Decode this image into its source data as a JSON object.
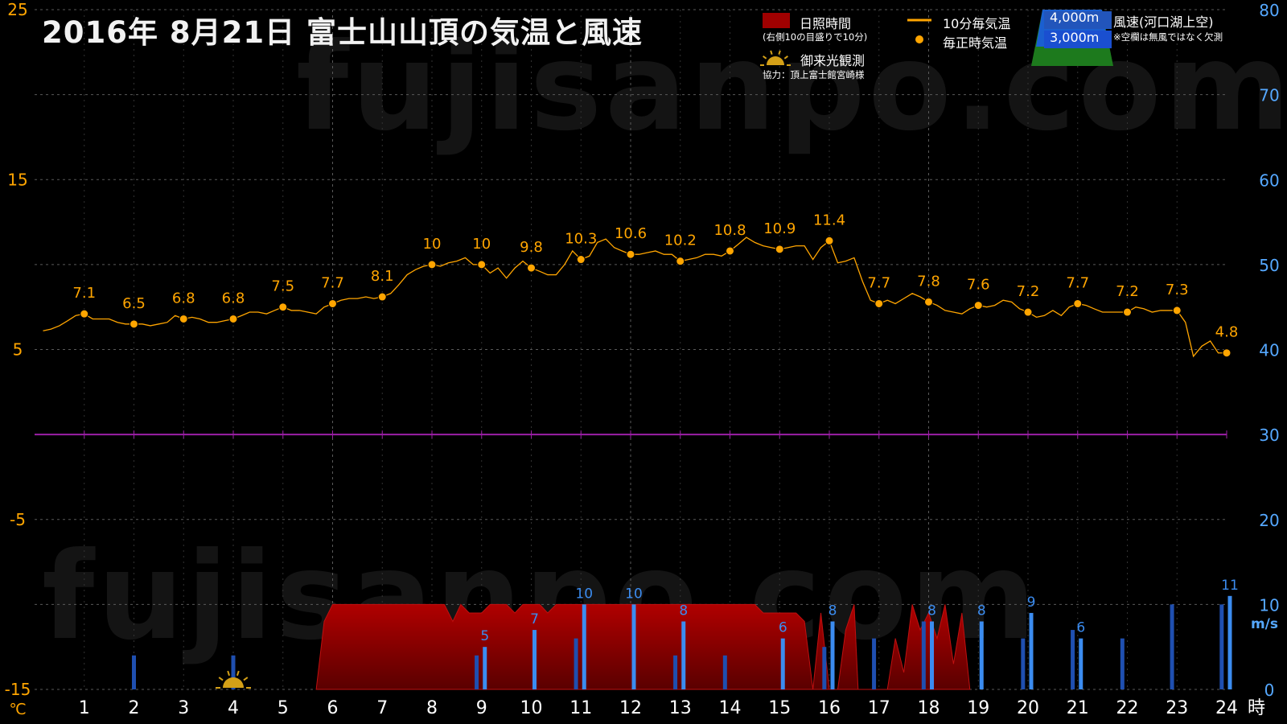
{
  "title": "2016年  8月21日   富士山山頂の気温と風速",
  "watermark": "fujisanpo.com",
  "legend": {
    "sunshine_label": "日照時間",
    "sunshine_note": "(右側10の目盛りで10分)",
    "temp10_label": "10分毎気温",
    "temp_hourly_label": "毎正時気温",
    "sunrise_label": "御来光観測",
    "sunrise_credit": "協力：頂上富士館宮崎様",
    "wind_4000_label": "4,000m",
    "wind_3000_label": "3,000m",
    "wind_title": "風速(河口湖上空)",
    "wind_note": "※空欄は無風ではなく欠測"
  },
  "colors": {
    "temp": "#ffa500",
    "wind_axis": "#55a8ff",
    "wind_4000": "#1f4fb0",
    "wind_3000": "#3b8cf0",
    "sunshine": "#a00000",
    "zero_line": "#9b1fa6",
    "grid": "#5a5a5a",
    "mountain_top": "#1a5fd0",
    "mountain_base": "#1d7a1d"
  },
  "chart_data": {
    "type": "line",
    "x_unit": "時",
    "left_axis_unit": "℃",
    "right_axis_unit": "m/s",
    "left_ticks": [
      "25",
      "15",
      "5",
      "-5",
      "-15"
    ],
    "right_ticks": [
      "80",
      "70",
      "60",
      "50",
      "40",
      "30",
      "20",
      "10",
      "0"
    ],
    "x_ticks": [
      "1",
      "2",
      "3",
      "4",
      "5",
      "6",
      "7",
      "8",
      "9",
      "10",
      "11",
      "12",
      "13",
      "14",
      "15",
      "16",
      "17",
      "18",
      "19",
      "20",
      "21",
      "22",
      "23",
      "24"
    ],
    "left_range": [
      -15,
      25
    ],
    "right_range": [
      0,
      80
    ],
    "grid": true,
    "hourly_temp": {
      "hours": [
        1,
        2,
        3,
        4,
        5,
        6,
        7,
        8,
        9,
        10,
        11,
        12,
        13,
        14,
        15,
        16,
        17,
        18,
        19,
        20,
        21,
        22,
        23,
        24
      ],
      "values": [
        7.1,
        6.5,
        6.8,
        6.8,
        7.5,
        7.7,
        8.1,
        10,
        10,
        9.8,
        10.3,
        10.6,
        10.2,
        10.8,
        10.9,
        11.4,
        7.7,
        7.8,
        7.6,
        7.2,
        7.7,
        7.2,
        7.3,
        4.8
      ],
      "labels": [
        "7.1",
        "6.5",
        "6.8",
        "6.8",
        "7.5",
        "7.7",
        "8.1",
        "10",
        "10",
        "9.8",
        "10.3",
        "10.6",
        "10.2",
        "10.8",
        "10.9",
        "11.4",
        "7.7",
        "7.8",
        "7.6",
        "7.2",
        "7.7",
        "7.2",
        "7.3",
        "4.8"
      ]
    },
    "temp_10min": [
      [
        0.17,
        6.1
      ],
      [
        0.33,
        6.2
      ],
      [
        0.5,
        6.4
      ],
      [
        0.67,
        6.7
      ],
      [
        0.83,
        7.0
      ],
      [
        1,
        7.1
      ],
      [
        1.17,
        6.8
      ],
      [
        1.33,
        6.8
      ],
      [
        1.5,
        6.8
      ],
      [
        1.67,
        6.6
      ],
      [
        1.83,
        6.5
      ],
      [
        2,
        6.5
      ],
      [
        2.17,
        6.5
      ],
      [
        2.33,
        6.4
      ],
      [
        2.5,
        6.5
      ],
      [
        2.67,
        6.6
      ],
      [
        2.83,
        7.0
      ],
      [
        3,
        6.8
      ],
      [
        3.17,
        6.9
      ],
      [
        3.33,
        6.8
      ],
      [
        3.5,
        6.6
      ],
      [
        3.67,
        6.6
      ],
      [
        3.83,
        6.7
      ],
      [
        4,
        6.8
      ],
      [
        4.17,
        7.0
      ],
      [
        4.33,
        7.2
      ],
      [
        4.5,
        7.2
      ],
      [
        4.67,
        7.1
      ],
      [
        4.83,
        7.3
      ],
      [
        5,
        7.5
      ],
      [
        5.17,
        7.3
      ],
      [
        5.33,
        7.3
      ],
      [
        5.5,
        7.2
      ],
      [
        5.67,
        7.1
      ],
      [
        5.83,
        7.5
      ],
      [
        6,
        7.7
      ],
      [
        6.17,
        7.9
      ],
      [
        6.33,
        8.0
      ],
      [
        6.5,
        8.0
      ],
      [
        6.67,
        8.1
      ],
      [
        6.83,
        8.0
      ],
      [
        7,
        8.1
      ],
      [
        7.17,
        8.3
      ],
      [
        7.33,
        8.8
      ],
      [
        7.5,
        9.4
      ],
      [
        7.67,
        9.7
      ],
      [
        7.83,
        9.9
      ],
      [
        8,
        10.0
      ],
      [
        8.17,
        9.9
      ],
      [
        8.33,
        10.1
      ],
      [
        8.5,
        10.2
      ],
      [
        8.67,
        10.4
      ],
      [
        8.83,
        10.0
      ],
      [
        9,
        10.0
      ],
      [
        9.17,
        9.5
      ],
      [
        9.33,
        9.8
      ],
      [
        9.5,
        9.2
      ],
      [
        9.67,
        9.8
      ],
      [
        9.83,
        10.2
      ],
      [
        10,
        9.8
      ],
      [
        10.17,
        9.6
      ],
      [
        10.33,
        9.4
      ],
      [
        10.5,
        9.4
      ],
      [
        10.67,
        10.0
      ],
      [
        10.83,
        10.8
      ],
      [
        11,
        10.3
      ],
      [
        11.17,
        10.5
      ],
      [
        11.33,
        11.3
      ],
      [
        11.5,
        11.5
      ],
      [
        11.67,
        11.0
      ],
      [
        11.83,
        10.8
      ],
      [
        12,
        10.6
      ],
      [
        12.17,
        10.6
      ],
      [
        12.33,
        10.7
      ],
      [
        12.5,
        10.8
      ],
      [
        12.67,
        10.6
      ],
      [
        12.83,
        10.6
      ],
      [
        13,
        10.2
      ],
      [
        13.17,
        10.3
      ],
      [
        13.33,
        10.4
      ],
      [
        13.5,
        10.6
      ],
      [
        13.67,
        10.6
      ],
      [
        13.83,
        10.5
      ],
      [
        14,
        10.8
      ],
      [
        14.17,
        11.2
      ],
      [
        14.33,
        11.6
      ],
      [
        14.5,
        11.3
      ],
      [
        14.67,
        11.1
      ],
      [
        14.83,
        11.0
      ],
      [
        15,
        10.9
      ],
      [
        15.17,
        11.0
      ],
      [
        15.33,
        11.1
      ],
      [
        15.5,
        11.1
      ],
      [
        15.67,
        10.3
      ],
      [
        15.83,
        11.0
      ],
      [
        16,
        11.4
      ],
      [
        16.17,
        10.1
      ],
      [
        16.33,
        10.2
      ],
      [
        16.5,
        10.4
      ],
      [
        16.67,
        9.0
      ],
      [
        16.83,
        7.9
      ],
      [
        17,
        7.7
      ],
      [
        17.17,
        7.9
      ],
      [
        17.33,
        7.7
      ],
      [
        17.5,
        8.0
      ],
      [
        17.67,
        8.3
      ],
      [
        17.83,
        8.1
      ],
      [
        18,
        7.8
      ],
      [
        18.17,
        7.6
      ],
      [
        18.33,
        7.3
      ],
      [
        18.5,
        7.2
      ],
      [
        18.67,
        7.1
      ],
      [
        18.83,
        7.4
      ],
      [
        19,
        7.6
      ],
      [
        19.17,
        7.5
      ],
      [
        19.33,
        7.6
      ],
      [
        19.5,
        7.9
      ],
      [
        19.67,
        7.8
      ],
      [
        19.83,
        7.4
      ],
      [
        20,
        7.2
      ],
      [
        20.17,
        6.9
      ],
      [
        20.33,
        7.0
      ],
      [
        20.5,
        7.3
      ],
      [
        20.67,
        7.0
      ],
      [
        20.83,
        7.5
      ],
      [
        21,
        7.7
      ],
      [
        21.17,
        7.6
      ],
      [
        21.33,
        7.4
      ],
      [
        21.5,
        7.2
      ],
      [
        21.67,
        7.2
      ],
      [
        21.83,
        7.2
      ],
      [
        22,
        7.2
      ],
      [
        22.17,
        7.5
      ],
      [
        22.33,
        7.4
      ],
      [
        22.5,
        7.2
      ],
      [
        22.67,
        7.3
      ],
      [
        22.83,
        7.3
      ],
      [
        23,
        7.3
      ],
      [
        23.17,
        6.6
      ],
      [
        23.33,
        4.6
      ],
      [
        23.5,
        5.2
      ],
      [
        23.67,
        5.5
      ],
      [
        23.83,
        4.8
      ],
      [
        24,
        4.8
      ]
    ],
    "wind_3000": {
      "hours": [
        9,
        10,
        11,
        12,
        13,
        15,
        16,
        18,
        19,
        20,
        21,
        24
      ],
      "values": [
        5,
        7,
        10,
        10,
        8,
        6,
        8,
        8,
        8,
        9,
        6,
        11
      ],
      "labels": [
        "5",
        "7",
        "10",
        "10",
        "8",
        "6",
        "8",
        "8",
        "8",
        "9",
        "6",
        "11"
      ]
    },
    "wind_4000": {
      "hours": [
        2,
        4,
        8.9,
        10.9,
        12.9,
        13.9,
        15.9,
        16.9,
        17.9,
        19.9,
        20.9,
        21.9,
        22.9,
        23.9
      ],
      "values": [
        4,
        4,
        4,
        6,
        4,
        4,
        5,
        6,
        8,
        6,
        7,
        6,
        10,
        10
      ]
    },
    "sunshine_10min": [
      [
        5.67,
        0
      ],
      [
        5.83,
        8
      ],
      [
        6,
        10
      ],
      [
        7,
        10
      ],
      [
        8,
        10
      ],
      [
        8.25,
        10
      ],
      [
        8.42,
        8
      ],
      [
        8.58,
        10
      ],
      [
        8.75,
        9
      ],
      [
        9,
        9
      ],
      [
        9.17,
        10
      ],
      [
        9.33,
        10
      ],
      [
        9.5,
        10
      ],
      [
        9.67,
        9
      ],
      [
        9.83,
        10
      ],
      [
        10,
        10
      ],
      [
        10.17,
        10
      ],
      [
        10.33,
        9
      ],
      [
        10.5,
        10
      ],
      [
        11,
        10
      ],
      [
        11.5,
        10
      ],
      [
        12,
        10
      ],
      [
        12.5,
        10
      ],
      [
        13,
        10
      ],
      [
        13.5,
        10
      ],
      [
        14,
        10
      ],
      [
        14.5,
        10
      ],
      [
        14.67,
        9
      ],
      [
        14.83,
        9
      ],
      [
        15,
        9
      ],
      [
        15.17,
        9
      ],
      [
        15.33,
        9
      ],
      [
        15.5,
        8
      ],
      [
        15.67,
        0
      ],
      [
        15.83,
        9
      ],
      [
        16,
        0
      ],
      [
        16.17,
        0
      ],
      [
        16.33,
        7
      ],
      [
        16.5,
        10
      ],
      [
        16.58,
        0
      ],
      [
        16.67,
        0
      ],
      [
        17,
        0
      ],
      [
        17.17,
        0
      ],
      [
        17.33,
        6
      ],
      [
        17.5,
        2
      ],
      [
        17.67,
        10
      ],
      [
        17.83,
        7
      ],
      [
        18,
        9
      ],
      [
        18.17,
        6
      ],
      [
        18.33,
        10
      ],
      [
        18.5,
        3
      ],
      [
        18.67,
        9
      ],
      [
        18.83,
        0
      ]
    ],
    "sunrise_hour": 4.0,
    "zero_line_value": 0
  }
}
